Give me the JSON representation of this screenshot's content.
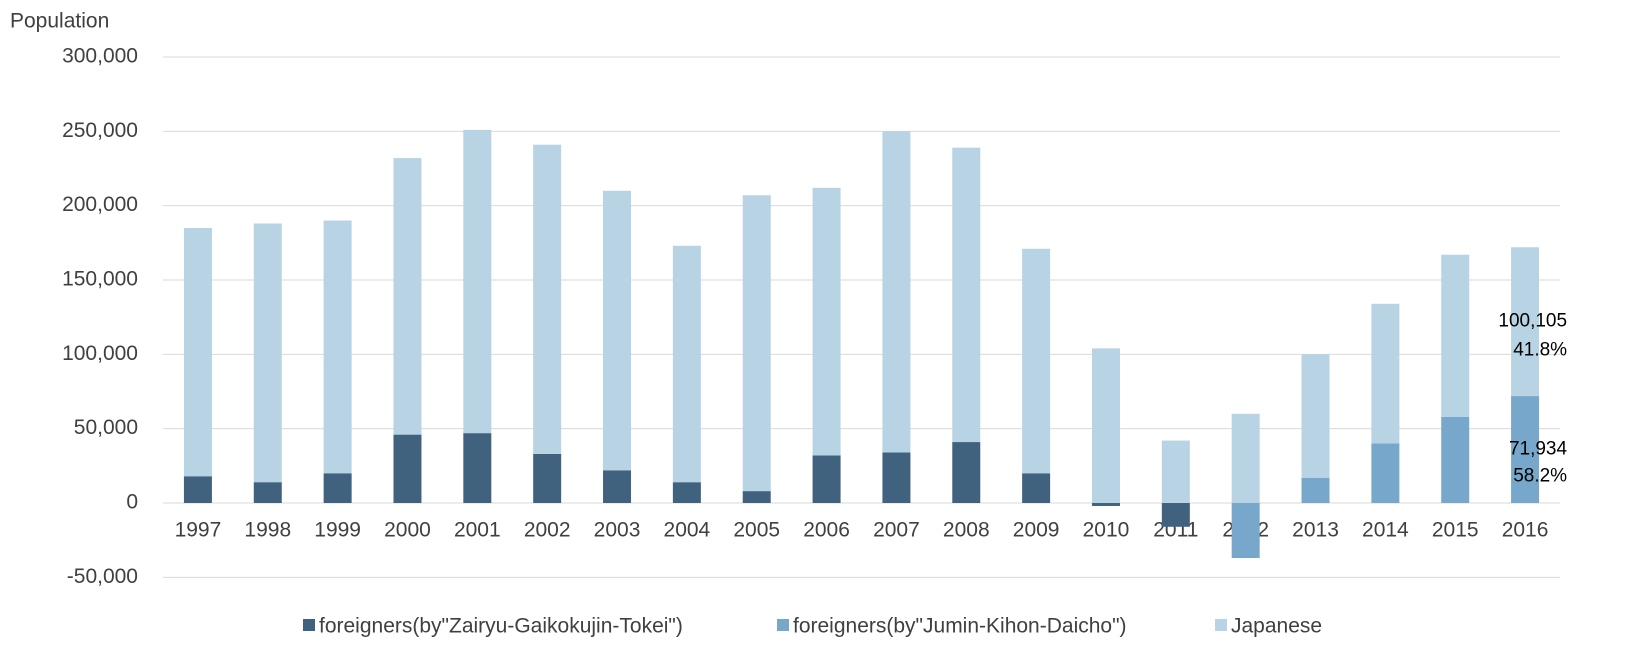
{
  "chart_data": {
    "type": "stacked-bar",
    "y_label": "Population",
    "categories": [
      "1997",
      "1998",
      "1999",
      "2000",
      "2001",
      "2002",
      "2003",
      "2004",
      "2005",
      "2006",
      "2007",
      "2008",
      "2009",
      "2010",
      "2011",
      "2012",
      "2013",
      "2014",
      "2015",
      "2016"
    ],
    "series": [
      {
        "name": "foreigners(by\"Zairyu-Gaikokujin-Tokei\")",
        "color": "#41627f",
        "values": [
          18000,
          14000,
          20000,
          46000,
          47000,
          33000,
          22000,
          14000,
          8000,
          32000,
          34000,
          41000,
          20000,
          -2000,
          -16000,
          null,
          null,
          null,
          null,
          null
        ]
      },
      {
        "name": "foreigners(by\"Jumin-Kihon-Daicho\")",
        "color": "#77a7cb",
        "values": [
          null,
          null,
          null,
          null,
          null,
          null,
          null,
          null,
          null,
          null,
          null,
          null,
          null,
          null,
          null,
          -37000,
          17000,
          40000,
          58000,
          71934
        ],
        "value_labels": [
          null,
          null,
          null,
          null,
          null,
          null,
          null,
          null,
          null,
          null,
          null,
          null,
          null,
          null,
          null,
          null,
          null,
          null,
          null,
          "71,934"
        ]
      },
      {
        "name": "Japanese",
        "color": "#b7d3e4",
        "values": [
          167000,
          174000,
          170000,
          186000,
          204000,
          208000,
          188000,
          159000,
          199000,
          180000,
          216000,
          198000,
          151000,
          104000,
          42000,
          60000,
          83000,
          94000,
          109000,
          100105
        ],
        "value_labels": [
          null,
          null,
          null,
          null,
          null,
          null,
          null,
          null,
          null,
          null,
          null,
          null,
          null,
          null,
          null,
          null,
          null,
          null,
          null,
          "100,105"
        ]
      }
    ],
    "annotations": [
      "41.8%",
      "58.2%"
    ],
    "ylim": [
      -65000,
      300000
    ],
    "yticks": [
      {
        "value": -50000,
        "label": "-50,000"
      },
      0,
      {
        "value": 50000,
        "label": "50,000"
      },
      {
        "value": 100000,
        "label": "100,000"
      },
      {
        "value": 150000,
        "label": "150,000"
      },
      {
        "value": 200000,
        "label": "200,000"
      },
      {
        "value": 250000,
        "label": "250,000"
      },
      {
        "value": 300000,
        "label": "300,000"
      }
    ],
    "grid": true,
    "legend": "bottom"
  }
}
